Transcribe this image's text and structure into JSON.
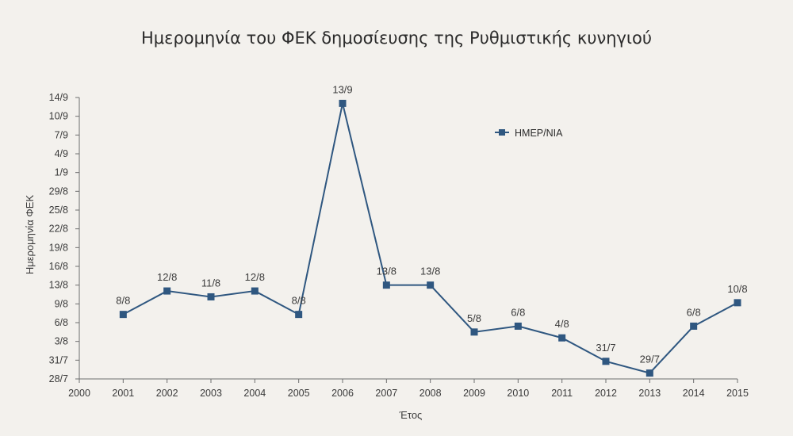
{
  "chart_data": {
    "type": "line",
    "title": "Ημερομηνία του ΦΕΚ δημοσίευσης της Ρυθμιστικής κυνηγιού",
    "xlabel": "Έτος",
    "ylabel": "Ημερομηνία ΦΕΚ",
    "x_ticks": [
      "2000",
      "2001",
      "2002",
      "2003",
      "2004",
      "2005",
      "2006",
      "2007",
      "2008",
      "2009",
      "2010",
      "2011",
      "2012",
      "2013",
      "2014",
      "2015"
    ],
    "y_ticks": [
      "28/7",
      "31/7",
      "3/8",
      "6/8",
      "9/8",
      "13/8",
      "16/8",
      "19/8",
      "22/8",
      "25/8",
      "29/8",
      "1/9",
      "4/9",
      "7/9",
      "10/9",
      "14/9"
    ],
    "xlim": [
      2000,
      2015
    ],
    "ylim": [
      "2000-07-28",
      "2000-09-14"
    ],
    "grid": false,
    "legend_position": "top-right",
    "color": "#2f5780",
    "series": [
      {
        "name": "ΗΜΕΡ/ΝΙΑ",
        "points": [
          {
            "x": 2001,
            "date": "2000-08-08",
            "label": "8/8"
          },
          {
            "x": 2002,
            "date": "2000-08-12",
            "label": "12/8"
          },
          {
            "x": 2003,
            "date": "2000-08-11",
            "label": "11/8"
          },
          {
            "x": 2004,
            "date": "2000-08-12",
            "label": "12/8"
          },
          {
            "x": 2005,
            "date": "2000-08-08",
            "label": "8/8"
          },
          {
            "x": 2006,
            "date": "2000-09-13",
            "label": "13/9"
          },
          {
            "x": 2007,
            "date": "2000-08-13",
            "label": "13/8"
          },
          {
            "x": 2008,
            "date": "2000-08-13",
            "label": "13/8"
          },
          {
            "x": 2009,
            "date": "2000-08-05",
            "label": "5/8"
          },
          {
            "x": 2010,
            "date": "2000-08-06",
            "label": "6/8"
          },
          {
            "x": 2011,
            "date": "2000-08-04",
            "label": "4/8"
          },
          {
            "x": 2012,
            "date": "2000-07-31",
            "label": "31/7"
          },
          {
            "x": 2013,
            "date": "2000-07-29",
            "label": "29/7"
          },
          {
            "x": 2014,
            "date": "2000-08-06",
            "label": "6/8"
          },
          {
            "x": 2015,
            "date": "2000-08-10",
            "label": "10/8"
          }
        ]
      }
    ]
  }
}
